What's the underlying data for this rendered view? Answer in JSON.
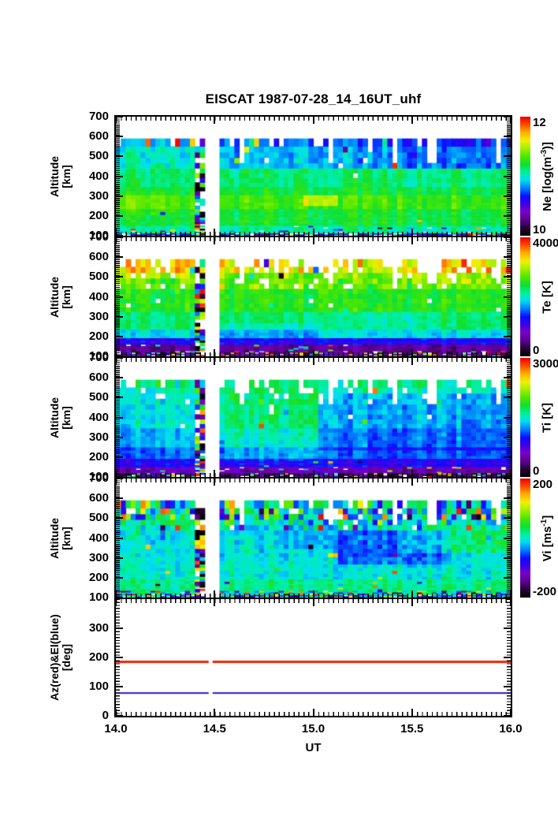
{
  "chart_data": {
    "type": "heatmap",
    "title": "EISCAT 1987-07-28_14_16UT_uhf",
    "x": {
      "label": "UT",
      "min": 14.0,
      "max": 16.0,
      "ticks": [
        14.0,
        14.5,
        15.0,
        15.5,
        16.0
      ],
      "tick_labels": [
        "14.0",
        "14.5",
        "15.0",
        "15.5",
        "16.0"
      ],
      "minor_step": 0.025
    },
    "alt_axis": {
      "label_lines": [
        "Altitude",
        "[km]"
      ],
      "min": 100,
      "max": 700,
      "ticks": [
        100,
        200,
        300,
        400,
        500,
        600,
        700
      ],
      "tick_labels": [
        "100",
        "200",
        "300",
        "400",
        "500",
        "600",
        "700"
      ],
      "data_top": 590
    },
    "colormap": {
      "stops": [
        [
          0.0,
          "#000000"
        ],
        [
          0.06,
          "#250034"
        ],
        [
          0.13,
          "#5c0090"
        ],
        [
          0.2,
          "#7a00c8"
        ],
        [
          0.27,
          "#3a00e8"
        ],
        [
          0.33,
          "#0d0dff"
        ],
        [
          0.4,
          "#0080ff"
        ],
        [
          0.47,
          "#00e0f0"
        ],
        [
          0.53,
          "#00f0a0"
        ],
        [
          0.6,
          "#10e030"
        ],
        [
          0.67,
          "#50e800"
        ],
        [
          0.74,
          "#a8f000"
        ],
        [
          0.8,
          "#f0f000"
        ],
        [
          0.87,
          "#ffb000"
        ],
        [
          0.93,
          "#ff5500"
        ],
        [
          1.0,
          "#f00000"
        ]
      ]
    },
    "row_edges": [
      100,
      107,
      114,
      121,
      128,
      136,
      144,
      152,
      161,
      171,
      182,
      194,
      207,
      221,
      236,
      252,
      269,
      287,
      306,
      326,
      347,
      369,
      392,
      416,
      441,
      467,
      494,
      522,
      551,
      590
    ],
    "calibration": {
      "stripe": [
        14.42,
        14.46
      ],
      "gap": [
        14.46,
        14.505
      ]
    },
    "deep_gaps": [
      14.63,
      15.08,
      15.42,
      15.6,
      15.93
    ],
    "panels": [
      {
        "id": "ne",
        "colorbar": {
          "label_pre": "Ne [log(m",
          "label_sup": "-3",
          "label_post": ")]",
          "top": "12",
          "bottom": "10"
        },
        "scale_min": 10,
        "scale_max": 12,
        "seed": 7,
        "bands": [
          {
            "lo": 540,
            "hi": 590,
            "base": 0.44,
            "noise": 0.09,
            "white": 0.1,
            "speckle": 0.04
          },
          {
            "lo": 450,
            "hi": 540,
            "base": 0.5,
            "noise": 0.07,
            "white": 0.03,
            "speckle": 0.01
          },
          {
            "lo": 350,
            "hi": 450,
            "base": 0.56,
            "noise": 0.05,
            "white": 0.005,
            "speckle": 0.0
          },
          {
            "lo": 300,
            "hi": 350,
            "base": 0.6,
            "noise": 0.04,
            "white": 0.0,
            "speckle": 0.0
          },
          {
            "lo": 240,
            "hi": 300,
            "base": 0.65,
            "noise": 0.04,
            "white": 0.0,
            "speckle": 0.0
          },
          {
            "lo": 150,
            "hi": 240,
            "base": 0.6,
            "noise": 0.04,
            "white": 0.0,
            "speckle": 0.005
          },
          {
            "lo": 115,
            "hi": 150,
            "base": 0.53,
            "noise": 0.07,
            "white": 0.02,
            "speckle": 0.05
          },
          {
            "lo": 100,
            "hi": 115,
            "base": 0.3,
            "noise": 0.25,
            "white": 0.15,
            "speckle": 0.35
          }
        ],
        "patches": [
          {
            "t0": 14.45,
            "t1": 16.0,
            "lo": 450,
            "hi": 590,
            "d": -0.06
          },
          {
            "t0": 15.2,
            "t1": 16.0,
            "lo": 430,
            "hi": 590,
            "d": -0.04
          },
          {
            "t0": 14.95,
            "t1": 15.12,
            "lo": 250,
            "hi": 305,
            "d": 0.12
          },
          {
            "t0": 14.0,
            "t1": 14.3,
            "lo": 210,
            "hi": 320,
            "d": 0.03
          }
        ]
      },
      {
        "id": "te",
        "colorbar": {
          "label_pre": "Te [K]",
          "label_sup": "",
          "label_post": "",
          "top": "4000",
          "bottom": "0"
        },
        "scale_min": 0,
        "scale_max": 4000,
        "seed": 13,
        "bands": [
          {
            "lo": 520,
            "hi": 590,
            "base": 0.78,
            "noise": 0.14,
            "white": 0.33,
            "speckle": 0.06
          },
          {
            "lo": 440,
            "hi": 520,
            "base": 0.68,
            "noise": 0.09,
            "white": 0.1,
            "speckle": 0.02
          },
          {
            "lo": 330,
            "hi": 440,
            "base": 0.62,
            "noise": 0.05,
            "white": 0.01,
            "speckle": 0.005
          },
          {
            "lo": 240,
            "hi": 330,
            "base": 0.56,
            "noise": 0.04,
            "white": 0.0,
            "speckle": 0.0
          },
          {
            "lo": 200,
            "hi": 240,
            "base": 0.47,
            "noise": 0.04,
            "white": 0.0,
            "speckle": 0.0
          },
          {
            "lo": 160,
            "hi": 200,
            "base": 0.3,
            "noise": 0.04,
            "white": 0.0,
            "speckle": 0.01
          },
          {
            "lo": 125,
            "hi": 160,
            "base": 0.14,
            "noise": 0.05,
            "white": 0.01,
            "speckle": 0.03
          },
          {
            "lo": 100,
            "hi": 125,
            "base": 0.12,
            "noise": 0.1,
            "white": 0.1,
            "speckle": 0.3
          }
        ],
        "patches": [
          {
            "t0": 14.0,
            "t1": 14.45,
            "lo": 500,
            "hi": 590,
            "d": 0.05
          },
          {
            "t0": 15.45,
            "t1": 16.0,
            "lo": 470,
            "hi": 590,
            "d": 0.04
          },
          {
            "t0": 14.5,
            "t1": 15.05,
            "lo": 195,
            "hi": 265,
            "d": -0.05
          },
          {
            "t0": 15.0,
            "t1": 15.6,
            "lo": 230,
            "hi": 330,
            "d": -0.03
          }
        ]
      },
      {
        "id": "ti",
        "colorbar": {
          "label_pre": "Ti [K]",
          "label_sup": "",
          "label_post": "",
          "top": "3000",
          "bottom": "0"
        },
        "scale_min": 0,
        "scale_max": 3000,
        "seed": 21,
        "bands": [
          {
            "lo": 540,
            "hi": 590,
            "base": 0.54,
            "noise": 0.1,
            "white": 0.28,
            "speckle": 0.05
          },
          {
            "lo": 460,
            "hi": 540,
            "base": 0.5,
            "noise": 0.08,
            "white": 0.1,
            "speckle": 0.02
          },
          {
            "lo": 350,
            "hi": 460,
            "base": 0.48,
            "noise": 0.06,
            "white": 0.01,
            "speckle": 0.01
          },
          {
            "lo": 260,
            "hi": 350,
            "base": 0.44,
            "noise": 0.05,
            "white": 0.0,
            "speckle": 0.0
          },
          {
            "lo": 200,
            "hi": 260,
            "base": 0.38,
            "noise": 0.04,
            "white": 0.0,
            "speckle": 0.0
          },
          {
            "lo": 150,
            "hi": 200,
            "base": 0.3,
            "noise": 0.05,
            "white": 0.0,
            "speckle": 0.01
          },
          {
            "lo": 120,
            "hi": 150,
            "base": 0.18,
            "noise": 0.07,
            "white": 0.02,
            "speckle": 0.05
          },
          {
            "lo": 100,
            "hi": 120,
            "base": 0.1,
            "noise": 0.1,
            "white": 0.1,
            "speckle": 0.28
          }
        ],
        "patches": [
          {
            "t0": 14.5,
            "t1": 15.02,
            "lo": 290,
            "hi": 540,
            "d": 0.07
          },
          {
            "t0": 15.02,
            "t1": 16.0,
            "lo": 240,
            "hi": 520,
            "d": -0.05
          },
          {
            "t0": 14.55,
            "t1": 15.0,
            "lo": 180,
            "hi": 290,
            "d": 0.05
          }
        ]
      },
      {
        "id": "vi",
        "colorbar": {
          "label_pre": "Vi [ms",
          "label_sup": "-1",
          "label_post": "]",
          "top": "200",
          "bottom": "-200"
        },
        "scale_min": -200,
        "scale_max": 200,
        "seed": 35,
        "bands": [
          {
            "lo": 500,
            "hi": 590,
            "base": 0.5,
            "noise": 0.28,
            "white": 0.1,
            "speckle": 0.3
          },
          {
            "lo": 430,
            "hi": 500,
            "base": 0.5,
            "noise": 0.16,
            "white": 0.02,
            "speckle": 0.12
          },
          {
            "lo": 300,
            "hi": 430,
            "base": 0.48,
            "noise": 0.08,
            "white": 0.0,
            "speckle": 0.02
          },
          {
            "lo": 200,
            "hi": 300,
            "base": 0.5,
            "noise": 0.06,
            "white": 0.0,
            "speckle": 0.01
          },
          {
            "lo": 140,
            "hi": 200,
            "base": 0.55,
            "noise": 0.05,
            "white": 0.0,
            "speckle": 0.02
          },
          {
            "lo": 115,
            "hi": 140,
            "base": 0.5,
            "noise": 0.22,
            "white": 0.04,
            "speckle": 0.35
          },
          {
            "lo": 100,
            "hi": 115,
            "base": 0.42,
            "noise": 0.3,
            "white": 0.12,
            "speckle": 0.4
          }
        ],
        "patches": [
          {
            "t0": 15.12,
            "t1": 15.68,
            "lo": 270,
            "hi": 450,
            "d": -0.1
          },
          {
            "t0": 15.45,
            "t1": 16.0,
            "lo": 330,
            "hi": 470,
            "d": 0.08
          },
          {
            "t0": 14.8,
            "t1": 15.12,
            "lo": 350,
            "hi": 500,
            "d": -0.04
          }
        ]
      }
    ],
    "line_panel": {
      "y_axis": {
        "label_lines": [
          "Az(red)&El(blue)",
          "[deg]"
        ],
        "min": 0,
        "max": 400,
        "ticks": [
          0,
          100,
          200,
          300
        ],
        "tick_labels": [
          "0",
          "100",
          "200",
          "300"
        ]
      },
      "lines": [
        {
          "name": "azimuth",
          "color": "#ee2200",
          "value": 185,
          "thickness": 3
        },
        {
          "name": "elevation",
          "color": "#3018c0",
          "value": 78,
          "thickness": 2
        }
      ],
      "gap": [
        14.47,
        14.49
      ]
    }
  }
}
